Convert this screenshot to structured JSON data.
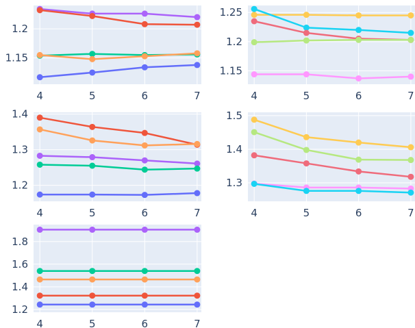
{
  "chart_data": [
    {
      "type": "line",
      "x": [
        4,
        5,
        6,
        7
      ],
      "xlim": [
        3.88,
        7.08
      ],
      "ylim": [
        1.105,
        1.24
      ],
      "yticks": [
        1.15,
        1.2
      ],
      "grid": true,
      "series": [
        {
          "color": "#ab63fa",
          "values": [
            1.234,
            1.226,
            1.226,
            1.22
          ]
        },
        {
          "color": "#ef553b",
          "values": [
            1.232,
            1.222,
            1.208,
            1.207
          ]
        },
        {
          "color": "#00cc96",
          "values": [
            1.154,
            1.157,
            1.155,
            1.156
          ]
        },
        {
          "color": "#ffa15a",
          "values": [
            1.155,
            1.148,
            1.153,
            1.158
          ]
        },
        {
          "color": "#636efa",
          "values": [
            1.117,
            1.125,
            1.134,
            1.138
          ]
        }
      ]
    },
    {
      "type": "line",
      "x": [
        4,
        5,
        6,
        7
      ],
      "xlim": [
        3.88,
        7.08
      ],
      "ylim": [
        1.127,
        1.262
      ],
      "yticks": [
        1.15,
        1.2,
        1.25
      ],
      "grid": true,
      "series": [
        {
          "color": "#fecb52",
          "values": [
            1.246,
            1.246,
            1.245,
            1.245
          ]
        },
        {
          "color": "#19d3f3",
          "values": [
            1.256,
            1.224,
            1.22,
            1.215
          ]
        },
        {
          "color": "#ef6b7b",
          "values": [
            1.235,
            1.215,
            1.205,
            1.203
          ]
        },
        {
          "color": "#b6e880",
          "values": [
            1.199,
            1.202,
            1.203,
            1.203
          ]
        },
        {
          "color": "#ff97ff",
          "values": [
            1.144,
            1.144,
            1.137,
            1.14
          ]
        }
      ]
    },
    {
      "type": "line",
      "x": [
        4,
        5,
        6,
        7
      ],
      "xlim": [
        3.88,
        7.08
      ],
      "ylim": [
        1.155,
        1.405
      ],
      "yticks": [
        1.2,
        1.3,
        1.4
      ],
      "grid": true,
      "series": [
        {
          "color": "#ef553b",
          "values": [
            1.39,
            1.364,
            1.347,
            1.314
          ]
        },
        {
          "color": "#ffa15a",
          "values": [
            1.357,
            1.326,
            1.312,
            1.316
          ]
        },
        {
          "color": "#ab63fa",
          "values": [
            1.283,
            1.279,
            1.27,
            1.261
          ]
        },
        {
          "color": "#00cc96",
          "values": [
            1.258,
            1.255,
            1.244,
            1.247
          ]
        },
        {
          "color": "#636efa",
          "values": [
            1.174,
            1.174,
            1.173,
            1.178
          ]
        }
      ]
    },
    {
      "type": "line",
      "x": [
        4,
        5,
        6,
        7
      ],
      "xlim": [
        3.88,
        7.08
      ],
      "ylim": [
        1.245,
        1.51
      ],
      "yticks": [
        1.3,
        1.4,
        1.5
      ],
      "grid": true,
      "series": [
        {
          "color": "#fecb52",
          "values": [
            1.488,
            1.436,
            1.42,
            1.406
          ]
        },
        {
          "color": "#b6e880",
          "values": [
            1.451,
            1.398,
            1.369,
            1.368
          ]
        },
        {
          "color": "#ef6b7b",
          "values": [
            1.382,
            1.358,
            1.334,
            1.318
          ]
        },
        {
          "color": "#ff97ff",
          "values": [
            1.298,
            1.286,
            1.286,
            1.283
          ]
        },
        {
          "color": "#19d3f3",
          "values": [
            1.297,
            1.276,
            1.276,
            1.271
          ]
        }
      ]
    },
    {
      "type": "line",
      "x": [
        4,
        5,
        6,
        7
      ],
      "xlim": [
        3.88,
        7.08
      ],
      "ylim": [
        1.175,
        1.95
      ],
      "yticks": [
        1.2,
        1.4,
        1.6,
        1.8
      ],
      "grid": true,
      "series": [
        {
          "color": "#ab63fa",
          "values": [
            1.905,
            1.905,
            1.905,
            1.905
          ]
        },
        {
          "color": "#00cc96",
          "values": [
            1.54,
            1.54,
            1.54,
            1.54
          ]
        },
        {
          "color": "#ffa15a",
          "values": [
            1.465,
            1.465,
            1.465,
            1.465
          ]
        },
        {
          "color": "#ef553b",
          "values": [
            1.322,
            1.322,
            1.322,
            1.322
          ]
        },
        {
          "color": "#636efa",
          "values": [
            1.243,
            1.243,
            1.243,
            1.243
          ]
        }
      ]
    }
  ]
}
